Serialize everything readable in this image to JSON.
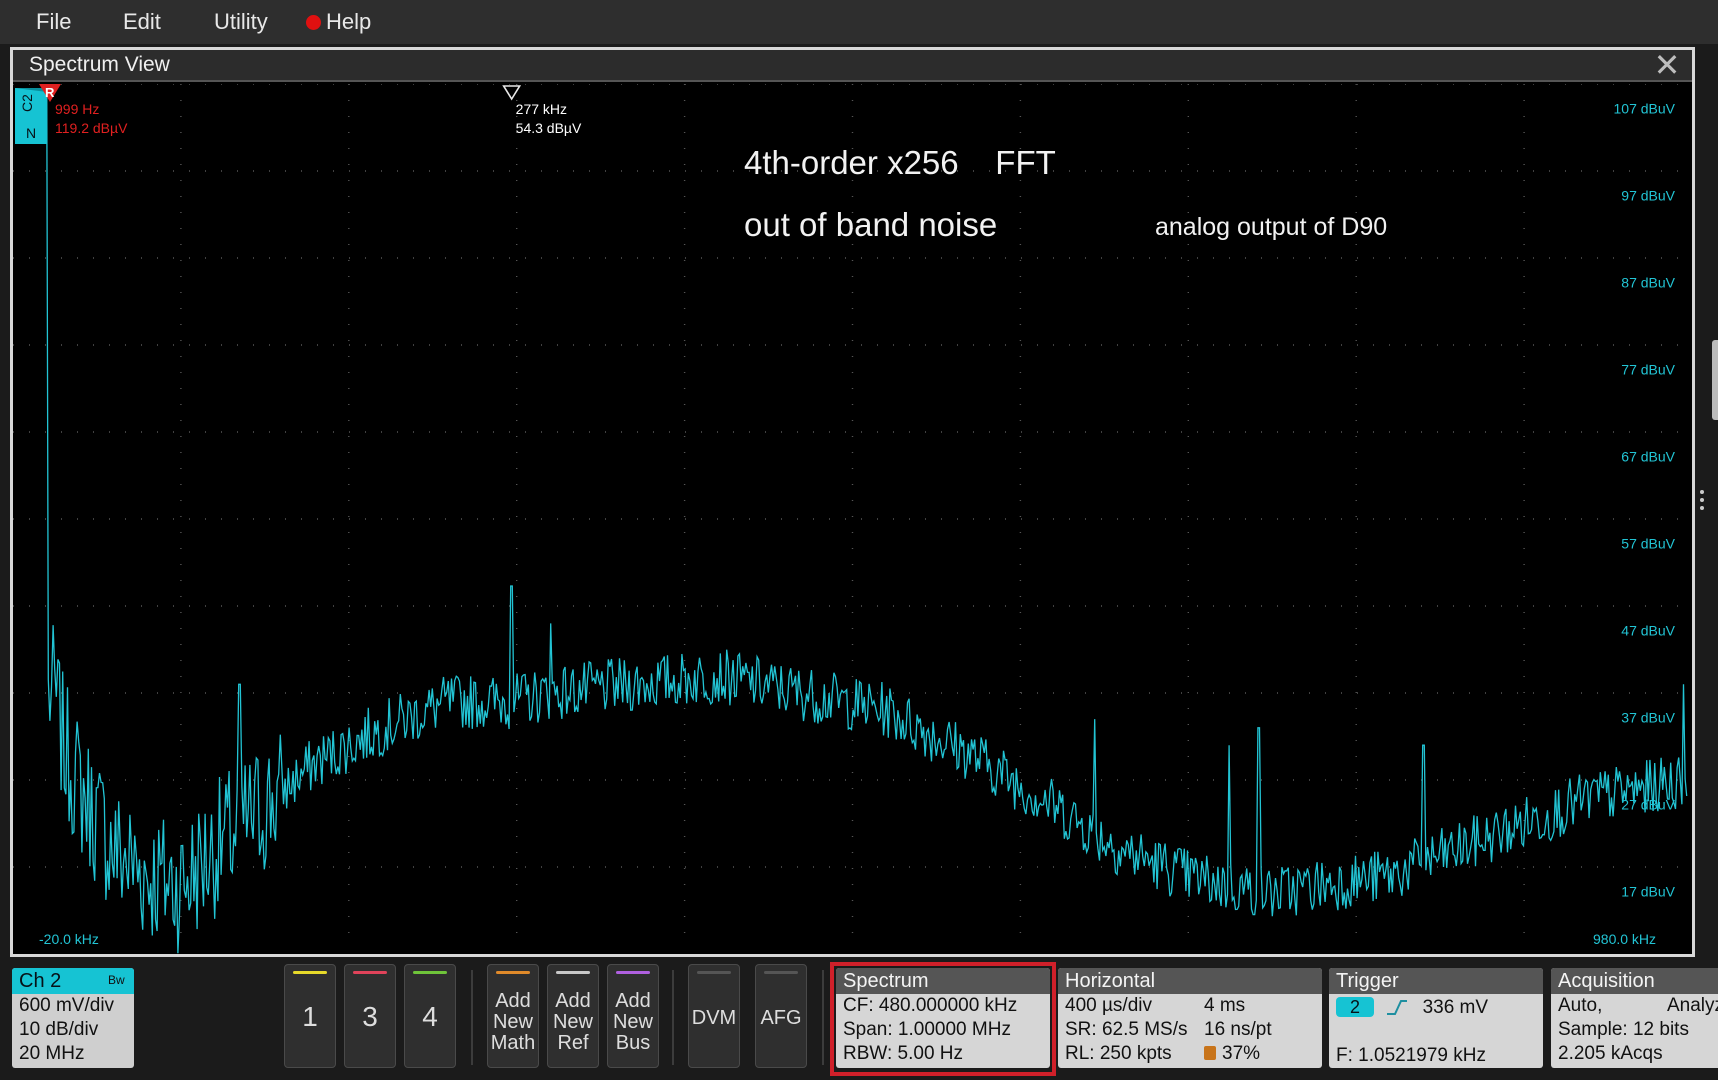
{
  "menu": [
    "File",
    "Edit",
    "Utility",
    "Help"
  ],
  "window": {
    "title": "Spectrum View",
    "close": "✕"
  },
  "channel_marker": {
    "channel": "C2",
    "mode": "N",
    "ref": "R"
  },
  "ref_marker": {
    "freq": "999 Hz",
    "level": "119.2 dBµV",
    "color": "#e02020"
  },
  "cursor_marker": {
    "freq": "277 kHz",
    "level": "54.3 dBµV"
  },
  "annotations": {
    "line1": "4th-order x256    FFT",
    "line2": "out of band noise",
    "line3": "analog output of D90"
  },
  "plot": {
    "xmin_label": "-20.0 kHz",
    "xmax_label": "980.0 kHz",
    "trace_color": "#22c4d4"
  },
  "chart_data": {
    "type": "line",
    "title": "",
    "xlabel": "",
    "ylabel": "",
    "xlim": [
      -20,
      980
    ],
    "x_unit": "kHz",
    "ylim": [
      12,
      112
    ],
    "y_unit": "dBuV",
    "y_tick_labels": [
      "107 dBuV",
      "97 dBuV",
      "87 dBuV",
      "77 dBuV",
      "67 dBuV",
      "57 dBuV",
      "47 dBuV",
      "37 dBuV",
      "27 dBuV",
      "17 dBuV"
    ],
    "x_tick_labels": [
      "-20.0 kHz",
      "980.0 kHz"
    ],
    "grid": true,
    "series": [
      {
        "x": [
          1,
          5,
          10,
          20,
          40,
          60,
          80,
          100,
          130,
          160,
          200,
          240,
          277,
          300,
          350,
          400,
          450,
          500,
          550,
          600,
          640,
          680,
          700,
          730,
          760,
          800,
          840,
          880,
          920,
          950,
          975
        ],
        "y": [
          119.2,
          42,
          36,
          31,
          24,
          21,
          20,
          24,
          29,
          34,
          38,
          41,
          41,
          42,
          43,
          44,
          42,
          40,
          35,
          29,
          24,
          21,
          20,
          19,
          20,
          21,
          24,
          27,
          30,
          31,
          32
        ]
      }
    ],
    "spurs": [
      {
        "x": 0,
        "y": 119.2
      },
      {
        "x": 115,
        "y": 43
      },
      {
        "x": 277,
        "y": 54.3
      },
      {
        "x": 300,
        "y": 50
      },
      {
        "x": 624,
        "y": 39
      },
      {
        "x": 704,
        "y": 36
      },
      {
        "x": 722,
        "y": 38
      },
      {
        "x": 820,
        "y": 36
      },
      {
        "x": 975,
        "y": 43
      }
    ]
  },
  "bottom": {
    "ch2": {
      "title": "Ch 2",
      "lines": [
        "600 mV/div",
        "10 dB/div",
        "20 MHz"
      ],
      "bw": "Bw"
    },
    "channel_buttons": [
      {
        "label": "1",
        "color": "#e6d92a"
      },
      {
        "label": "3",
        "color": "#e0435a"
      },
      {
        "label": "4",
        "color": "#6fc43a"
      }
    ],
    "add_buttons": [
      {
        "lines": [
          "Add",
          "New",
          "Math"
        ],
        "color": "#e08a2a"
      },
      {
        "lines": [
          "Add",
          "New",
          "Ref"
        ],
        "color": "#c8c8c8"
      },
      {
        "lines": [
          "Add",
          "New",
          "Bus"
        ],
        "color": "#b060e0"
      }
    ],
    "tool_buttons": [
      "DVM",
      "AFG"
    ],
    "spectrum": {
      "title": "Spectrum",
      "lines": [
        "CF: 480.000000 kHz",
        "Span: 1.00000 MHz",
        "RBW: 5.00 Hz"
      ]
    },
    "horizontal": {
      "title": "Horizontal",
      "rows": [
        [
          "400 µs/div",
          "4 ms"
        ],
        [
          "SR: 62.5 MS/s",
          "16 ns/pt"
        ],
        [
          "RL: 250 kpts",
          "37%"
        ]
      ]
    },
    "trigger": {
      "title": "Trigger",
      "channel": "2",
      "level": "336 mV",
      "freq": "F: 1.0521979 kHz"
    },
    "acquisition": {
      "title": "Acquisition",
      "lines": [
        "Auto,",
        "Sample: 12 bits",
        "2.205 kAcqs"
      ],
      "extra": "Analyz"
    }
  }
}
